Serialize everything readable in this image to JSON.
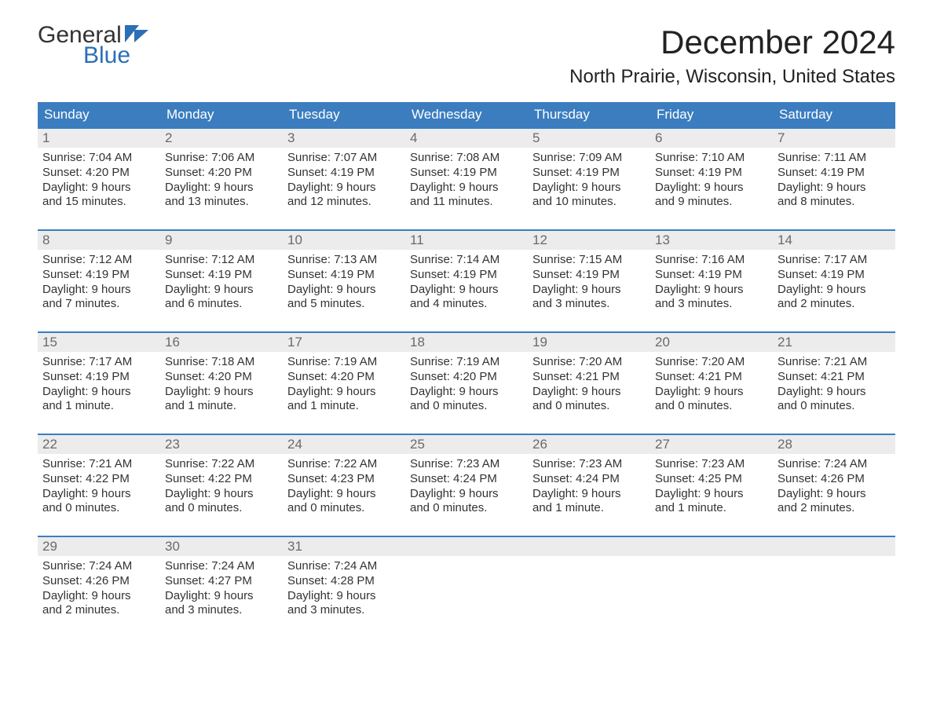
{
  "logo": {
    "line1": "General",
    "line2": "Blue",
    "icon_color": "#2b6fb5"
  },
  "title": "December 2024",
  "location": "North Prairie, Wisconsin, United States",
  "colors": {
    "header_bg": "#3b7dbf",
    "header_text": "#ffffff",
    "daynum_bg": "#ececec",
    "daynum_text": "#6a6a6a",
    "body_text": "#333333",
    "week_border": "#3b7dbf"
  },
  "weekdays": [
    "Sunday",
    "Monday",
    "Tuesday",
    "Wednesday",
    "Thursday",
    "Friday",
    "Saturday"
  ],
  "weeks": [
    [
      {
        "n": "1",
        "sunrise": "Sunrise: 7:04 AM",
        "sunset": "Sunset: 4:20 PM",
        "d1": "Daylight: 9 hours",
        "d2": "and 15 minutes."
      },
      {
        "n": "2",
        "sunrise": "Sunrise: 7:06 AM",
        "sunset": "Sunset: 4:20 PM",
        "d1": "Daylight: 9 hours",
        "d2": "and 13 minutes."
      },
      {
        "n": "3",
        "sunrise": "Sunrise: 7:07 AM",
        "sunset": "Sunset: 4:19 PM",
        "d1": "Daylight: 9 hours",
        "d2": "and 12 minutes."
      },
      {
        "n": "4",
        "sunrise": "Sunrise: 7:08 AM",
        "sunset": "Sunset: 4:19 PM",
        "d1": "Daylight: 9 hours",
        "d2": "and 11 minutes."
      },
      {
        "n": "5",
        "sunrise": "Sunrise: 7:09 AM",
        "sunset": "Sunset: 4:19 PM",
        "d1": "Daylight: 9 hours",
        "d2": "and 10 minutes."
      },
      {
        "n": "6",
        "sunrise": "Sunrise: 7:10 AM",
        "sunset": "Sunset: 4:19 PM",
        "d1": "Daylight: 9 hours",
        "d2": "and 9 minutes."
      },
      {
        "n": "7",
        "sunrise": "Sunrise: 7:11 AM",
        "sunset": "Sunset: 4:19 PM",
        "d1": "Daylight: 9 hours",
        "d2": "and 8 minutes."
      }
    ],
    [
      {
        "n": "8",
        "sunrise": "Sunrise: 7:12 AM",
        "sunset": "Sunset: 4:19 PM",
        "d1": "Daylight: 9 hours",
        "d2": "and 7 minutes."
      },
      {
        "n": "9",
        "sunrise": "Sunrise: 7:12 AM",
        "sunset": "Sunset: 4:19 PM",
        "d1": "Daylight: 9 hours",
        "d2": "and 6 minutes."
      },
      {
        "n": "10",
        "sunrise": "Sunrise: 7:13 AM",
        "sunset": "Sunset: 4:19 PM",
        "d1": "Daylight: 9 hours",
        "d2": "and 5 minutes."
      },
      {
        "n": "11",
        "sunrise": "Sunrise: 7:14 AM",
        "sunset": "Sunset: 4:19 PM",
        "d1": "Daylight: 9 hours",
        "d2": "and 4 minutes."
      },
      {
        "n": "12",
        "sunrise": "Sunrise: 7:15 AM",
        "sunset": "Sunset: 4:19 PM",
        "d1": "Daylight: 9 hours",
        "d2": "and 3 minutes."
      },
      {
        "n": "13",
        "sunrise": "Sunrise: 7:16 AM",
        "sunset": "Sunset: 4:19 PM",
        "d1": "Daylight: 9 hours",
        "d2": "and 3 minutes."
      },
      {
        "n": "14",
        "sunrise": "Sunrise: 7:17 AM",
        "sunset": "Sunset: 4:19 PM",
        "d1": "Daylight: 9 hours",
        "d2": "and 2 minutes."
      }
    ],
    [
      {
        "n": "15",
        "sunrise": "Sunrise: 7:17 AM",
        "sunset": "Sunset: 4:19 PM",
        "d1": "Daylight: 9 hours",
        "d2": "and 1 minute."
      },
      {
        "n": "16",
        "sunrise": "Sunrise: 7:18 AM",
        "sunset": "Sunset: 4:20 PM",
        "d1": "Daylight: 9 hours",
        "d2": "and 1 minute."
      },
      {
        "n": "17",
        "sunrise": "Sunrise: 7:19 AM",
        "sunset": "Sunset: 4:20 PM",
        "d1": "Daylight: 9 hours",
        "d2": "and 1 minute."
      },
      {
        "n": "18",
        "sunrise": "Sunrise: 7:19 AM",
        "sunset": "Sunset: 4:20 PM",
        "d1": "Daylight: 9 hours",
        "d2": "and 0 minutes."
      },
      {
        "n": "19",
        "sunrise": "Sunrise: 7:20 AM",
        "sunset": "Sunset: 4:21 PM",
        "d1": "Daylight: 9 hours",
        "d2": "and 0 minutes."
      },
      {
        "n": "20",
        "sunrise": "Sunrise: 7:20 AM",
        "sunset": "Sunset: 4:21 PM",
        "d1": "Daylight: 9 hours",
        "d2": "and 0 minutes."
      },
      {
        "n": "21",
        "sunrise": "Sunrise: 7:21 AM",
        "sunset": "Sunset: 4:21 PM",
        "d1": "Daylight: 9 hours",
        "d2": "and 0 minutes."
      }
    ],
    [
      {
        "n": "22",
        "sunrise": "Sunrise: 7:21 AM",
        "sunset": "Sunset: 4:22 PM",
        "d1": "Daylight: 9 hours",
        "d2": "and 0 minutes."
      },
      {
        "n": "23",
        "sunrise": "Sunrise: 7:22 AM",
        "sunset": "Sunset: 4:22 PM",
        "d1": "Daylight: 9 hours",
        "d2": "and 0 minutes."
      },
      {
        "n": "24",
        "sunrise": "Sunrise: 7:22 AM",
        "sunset": "Sunset: 4:23 PM",
        "d1": "Daylight: 9 hours",
        "d2": "and 0 minutes."
      },
      {
        "n": "25",
        "sunrise": "Sunrise: 7:23 AM",
        "sunset": "Sunset: 4:24 PM",
        "d1": "Daylight: 9 hours",
        "d2": "and 0 minutes."
      },
      {
        "n": "26",
        "sunrise": "Sunrise: 7:23 AM",
        "sunset": "Sunset: 4:24 PM",
        "d1": "Daylight: 9 hours",
        "d2": "and 1 minute."
      },
      {
        "n": "27",
        "sunrise": "Sunrise: 7:23 AM",
        "sunset": "Sunset: 4:25 PM",
        "d1": "Daylight: 9 hours",
        "d2": "and 1 minute."
      },
      {
        "n": "28",
        "sunrise": "Sunrise: 7:24 AM",
        "sunset": "Sunset: 4:26 PM",
        "d1": "Daylight: 9 hours",
        "d2": "and 2 minutes."
      }
    ],
    [
      {
        "n": "29",
        "sunrise": "Sunrise: 7:24 AM",
        "sunset": "Sunset: 4:26 PM",
        "d1": "Daylight: 9 hours",
        "d2": "and 2 minutes."
      },
      {
        "n": "30",
        "sunrise": "Sunrise: 7:24 AM",
        "sunset": "Sunset: 4:27 PM",
        "d1": "Daylight: 9 hours",
        "d2": "and 3 minutes."
      },
      {
        "n": "31",
        "sunrise": "Sunrise: 7:24 AM",
        "sunset": "Sunset: 4:28 PM",
        "d1": "Daylight: 9 hours",
        "d2": "and 3 minutes."
      },
      {
        "empty": true
      },
      {
        "empty": true
      },
      {
        "empty": true
      },
      {
        "empty": true
      }
    ]
  ]
}
